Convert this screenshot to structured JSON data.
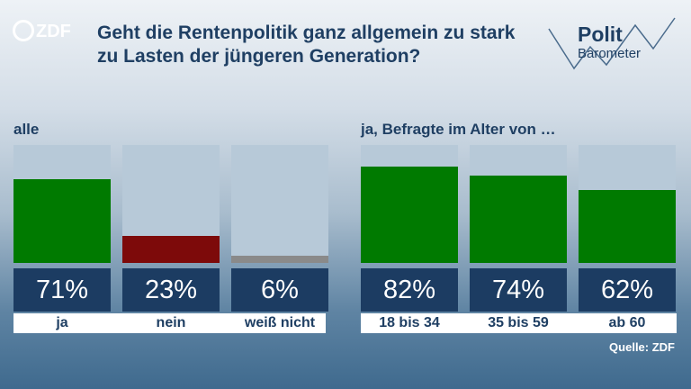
{
  "header": {
    "logo_text": "ZDF",
    "title": "Geht die Rentenpolitik ganz allgemein zu stark zu Lasten der jüngeren Generation?",
    "brand_line1": "Polit",
    "brand_line2": "Barometer"
  },
  "colors": {
    "yes": "#007a00",
    "no": "#7d0a0a",
    "dont_know": "#8a8a8a",
    "value_box": "#1c3c62",
    "track": "#b7c9d8"
  },
  "chart_data": [
    {
      "type": "bar",
      "title": "alle",
      "categories": [
        "ja",
        "nein",
        "weiß nicht"
      ],
      "values": [
        71,
        23,
        6
      ],
      "value_labels": [
        "71%",
        "23%",
        "6%"
      ],
      "colors": [
        "#007a00",
        "#7d0a0a",
        "#8a8a8a"
      ],
      "ylim": [
        0,
        100
      ],
      "grid": false
    },
    {
      "type": "bar",
      "title": "ja, Befragte im Alter von …",
      "categories": [
        "18 bis 34",
        "35 bis 59",
        "ab 60"
      ],
      "values": [
        82,
        74,
        62
      ],
      "value_labels": [
        "82%",
        "74%",
        "62%"
      ],
      "colors": [
        "#007a00",
        "#007a00",
        "#007a00"
      ],
      "ylim": [
        0,
        100
      ],
      "grid": false
    }
  ],
  "footer": {
    "source": "Quelle: ZDF"
  }
}
